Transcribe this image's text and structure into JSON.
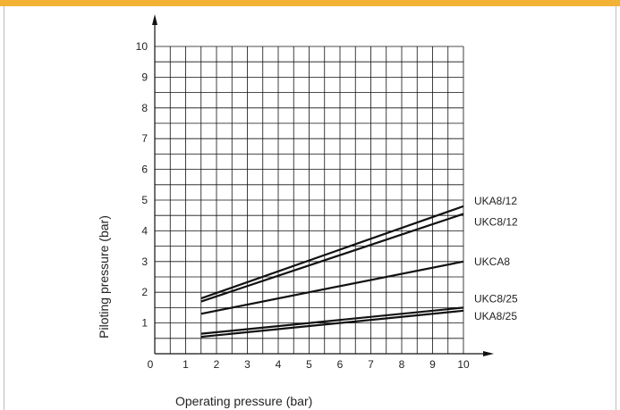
{
  "colors": {
    "top_band": "#f2b233",
    "grid": "#111111",
    "lines": "#111111"
  },
  "chart_data": {
    "type": "line",
    "title": "",
    "xlabel": "Operating pressure (bar)",
    "ylabel": "Piloting pressure (bar)",
    "xlim": [
      0,
      10
    ],
    "ylim": [
      0,
      10
    ],
    "x_ticks": [
      "0",
      "1",
      "2",
      "3",
      "4",
      "5",
      "6",
      "7",
      "8",
      "9",
      "10"
    ],
    "y_ticks": [
      "1",
      "2",
      "3",
      "4",
      "5",
      "6",
      "7",
      "8",
      "9",
      "10"
    ],
    "grid": true,
    "minor_grid_step": 0.5,
    "series": [
      {
        "name": "UKA8/12",
        "x": [
          1.5,
          10
        ],
        "y": [
          1.8,
          4.8
        ]
      },
      {
        "name": "UKC8/12",
        "x": [
          1.5,
          10
        ],
        "y": [
          1.7,
          4.55
        ]
      },
      {
        "name": "UKCA8",
        "x": [
          1.5,
          10
        ],
        "y": [
          1.3,
          3.0
        ]
      },
      {
        "name": "UKC8/25",
        "x": [
          1.5,
          10
        ],
        "y": [
          0.65,
          1.5
        ]
      },
      {
        "name": "UKA8/25",
        "x": [
          1.5,
          10
        ],
        "y": [
          0.55,
          1.4
        ]
      }
    ]
  }
}
